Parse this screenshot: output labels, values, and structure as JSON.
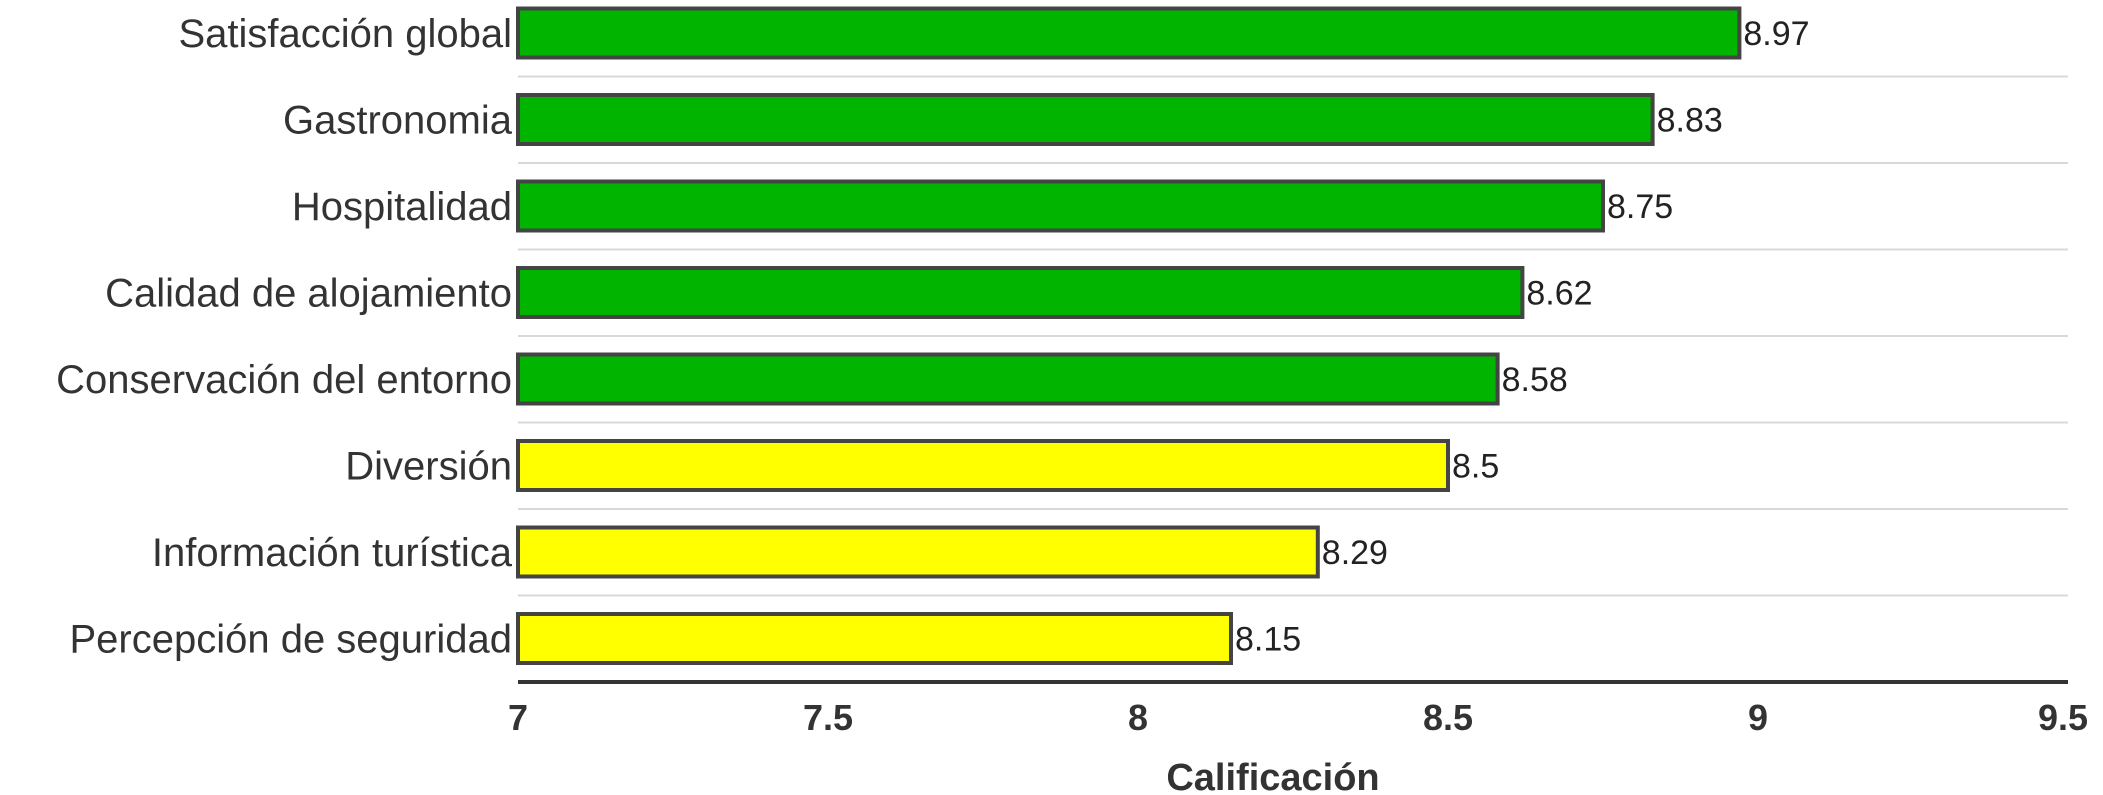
{
  "chart_data": {
    "type": "bar",
    "orientation": "horizontal",
    "categories": [
      "Satisfacción global",
      "Gastronomia",
      "Hospitalidad",
      "Calidad de alojamiento",
      "Conservación del entorno",
      "Diversión",
      "Información turística",
      "Percepción de seguridad"
    ],
    "values": [
      8.97,
      8.83,
      8.75,
      8.62,
      8.58,
      8.5,
      8.29,
      8.15
    ],
    "value_labels": [
      "8.97",
      "8.83",
      "8.75",
      "8.62",
      "8.58",
      "8.5",
      "8.29",
      "8.15"
    ],
    "bar_colors": [
      "#00b400",
      "#00b400",
      "#00b400",
      "#00b400",
      "#00b400",
      "#ffff00",
      "#ffff00",
      "#ffff00"
    ],
    "bar_edge_color": "#444444",
    "title": "",
    "xlabel": "Calificación",
    "ylabel": "",
    "xlim": [
      7,
      9.5
    ],
    "xticks": [
      7,
      7.5,
      8,
      8.5,
      9,
      9.5
    ],
    "xtick_labels": [
      "7",
      "7.5",
      "8",
      "8.5",
      "9",
      "9.5"
    ],
    "grid": "horizontal separators between bars",
    "legend": "none"
  }
}
